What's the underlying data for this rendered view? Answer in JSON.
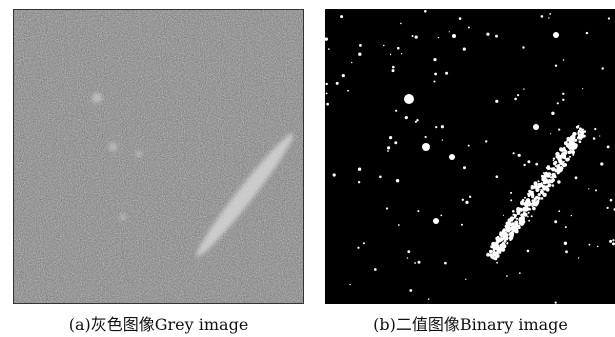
{
  "figure": {
    "panels": [
      {
        "caption": "(a)灰色图像Grey image",
        "kind": "grayscale-noise-image",
        "background_color": "#808080",
        "border_color": "#333333"
      },
      {
        "caption": "(b)二值图像Binary image",
        "kind": "binary-threshold-image",
        "background_color": "#000000",
        "foreground_color": "#ffffff"
      }
    ]
  }
}
